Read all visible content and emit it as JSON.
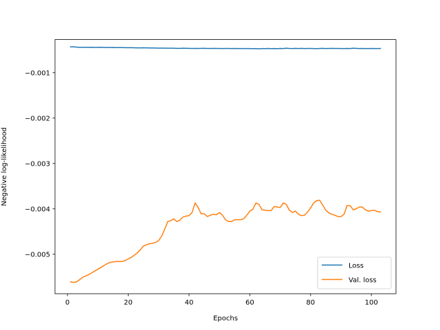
{
  "chart_data": {
    "type": "line",
    "xlabel": "Epochs",
    "ylabel": "Negative log-likelihood",
    "xlim": [
      -4.1,
      108.1
    ],
    "ylim": [
      -0.00587,
      -0.00027
    ],
    "xticks": [
      0,
      20,
      40,
      60,
      80,
      100
    ],
    "xtick_labels": [
      "0",
      "20",
      "40",
      "60",
      "80",
      "100"
    ],
    "yticks": [
      -0.001,
      -0.002,
      -0.003,
      -0.004,
      -0.005
    ],
    "ytick_labels": [
      "−0.001",
      "−0.002",
      "−0.003",
      "−0.004",
      "−0.005"
    ],
    "grid": false,
    "legend_position": "lower-right",
    "series": [
      {
        "name": "Loss",
        "color": "#1f77b4",
        "x": [
          1,
          2,
          3,
          4,
          5,
          6,
          7,
          8,
          9,
          10,
          11,
          12,
          13,
          14,
          15,
          16,
          17,
          18,
          19,
          20,
          21,
          22,
          23,
          24,
          25,
          26,
          27,
          28,
          29,
          30,
          31,
          32,
          33,
          34,
          35,
          36,
          37,
          38,
          39,
          40,
          41,
          42,
          43,
          44,
          45,
          46,
          47,
          48,
          49,
          50,
          51,
          52,
          53,
          54,
          55,
          56,
          57,
          58,
          59,
          60,
          61,
          62,
          63,
          64,
          65,
          66,
          67,
          68,
          69,
          70,
          71,
          72,
          73,
          74,
          75,
          76,
          77,
          78,
          79,
          80,
          81,
          82,
          83,
          84,
          85,
          86,
          87,
          88,
          89,
          90,
          91,
          92,
          93,
          94,
          95,
          96,
          97,
          98,
          99,
          100,
          101,
          102,
          103
        ],
        "values": [
          -0.00043,
          -0.00043,
          -0.000435,
          -0.00044,
          -0.00044,
          -0.000438,
          -0.00044,
          -0.000438,
          -0.000442,
          -0.00044,
          -0.000438,
          -0.000442,
          -0.000442,
          -0.000444,
          -0.000442,
          -0.000446,
          -0.000444,
          -0.000445,
          -0.000448,
          -0.000448,
          -0.000448,
          -0.00045,
          -0.000452,
          -0.000452,
          -0.00045,
          -0.000452,
          -0.000455,
          -0.000455,
          -0.000456,
          -0.000458,
          -0.000458,
          -0.000458,
          -0.00046,
          -0.00046,
          -0.00046,
          -0.000463,
          -0.000463,
          -0.00046,
          -0.000462,
          -0.000463,
          -0.000465,
          -0.000463,
          -0.000465,
          -0.000463,
          -0.000462,
          -0.000465,
          -0.000465,
          -0.000463,
          -0.000465,
          -0.000465,
          -0.000467,
          -0.000465,
          -0.000465,
          -0.000467,
          -0.000465,
          -0.000467,
          -0.000467,
          -0.000468,
          -0.000468,
          -0.000468,
          -0.00047,
          -0.000468,
          -0.000473,
          -0.000467,
          -0.00047,
          -0.000465,
          -0.00047,
          -0.000467,
          -0.00047,
          -0.000465,
          -0.000467,
          -0.00046,
          -0.000465,
          -0.000467,
          -0.000463,
          -0.000467,
          -0.000463,
          -0.000467,
          -0.000465,
          -0.000465,
          -0.000467,
          -0.00047,
          -0.000465,
          -0.000463,
          -0.000467,
          -0.000465,
          -0.000463,
          -0.000465,
          -0.000465,
          -0.000467,
          -0.000467,
          -0.000465,
          -0.000467,
          -0.00046,
          -0.000463,
          -0.000467,
          -0.000465,
          -0.000467,
          -0.000467,
          -0.000465,
          -0.000467,
          -0.000467,
          -0.000465
        ]
      },
      {
        "name": "Val. loss",
        "color": "#ff7f0e",
        "x": [
          1,
          2,
          3,
          4,
          5,
          6,
          7,
          8,
          9,
          10,
          11,
          12,
          13,
          14,
          15,
          16,
          17,
          18,
          19,
          20,
          21,
          22,
          23,
          24,
          25,
          26,
          27,
          28,
          29,
          30,
          31,
          32,
          33,
          34,
          35,
          36,
          37,
          38,
          39,
          40,
          41,
          42,
          43,
          44,
          45,
          46,
          47,
          48,
          49,
          50,
          51,
          52,
          53,
          54,
          55,
          56,
          57,
          58,
          59,
          60,
          61,
          62,
          63,
          64,
          65,
          66,
          67,
          68,
          69,
          70,
          71,
          72,
          73,
          74,
          75,
          76,
          77,
          78,
          79,
          80,
          81,
          82,
          83,
          84,
          85,
          86,
          87,
          88,
          89,
          90,
          91,
          92,
          93,
          94,
          95,
          96,
          97,
          98,
          99,
          100,
          101,
          102,
          103
        ],
        "values": [
          -0.00561,
          -0.00562,
          -0.00561,
          -0.00556,
          -0.00551,
          -0.00548,
          -0.00545,
          -0.00541,
          -0.00537,
          -0.00533,
          -0.00529,
          -0.00525,
          -0.00521,
          -0.00518,
          -0.00517,
          -0.00516,
          -0.00516,
          -0.00516,
          -0.00514,
          -0.0051,
          -0.00507,
          -0.00502,
          -0.00497,
          -0.0049,
          -0.00482,
          -0.00479,
          -0.00477,
          -0.00476,
          -0.00474,
          -0.0047,
          -0.0046,
          -0.00445,
          -0.00428,
          -0.00426,
          -0.00422,
          -0.00428,
          -0.00425,
          -0.00418,
          -0.00416,
          -0.00415,
          -0.00408,
          -0.00387,
          -0.00397,
          -0.00411,
          -0.00411,
          -0.00417,
          -0.00414,
          -0.00412,
          -0.00413,
          -0.00408,
          -0.00414,
          -0.00424,
          -0.00428,
          -0.00428,
          -0.00424,
          -0.00424,
          -0.00424,
          -0.00422,
          -0.00414,
          -0.00405,
          -0.00401,
          -0.00387,
          -0.0039,
          -0.00402,
          -0.00403,
          -0.00404,
          -0.00404,
          -0.00395,
          -0.00396,
          -0.00397,
          -0.00387,
          -0.0039,
          -0.00403,
          -0.00408,
          -0.00405,
          -0.00412,
          -0.00415,
          -0.00414,
          -0.00407,
          -0.00398,
          -0.00387,
          -0.00382,
          -0.00381,
          -0.00392,
          -0.00403,
          -0.00409,
          -0.00412,
          -0.00414,
          -0.00417,
          -0.00417,
          -0.00412,
          -0.00393,
          -0.00393,
          -0.00402,
          -0.004,
          -0.00396,
          -0.00396,
          -0.00402,
          -0.00405,
          -0.00404,
          -0.00403,
          -0.00406,
          -0.00407
        ]
      }
    ]
  }
}
